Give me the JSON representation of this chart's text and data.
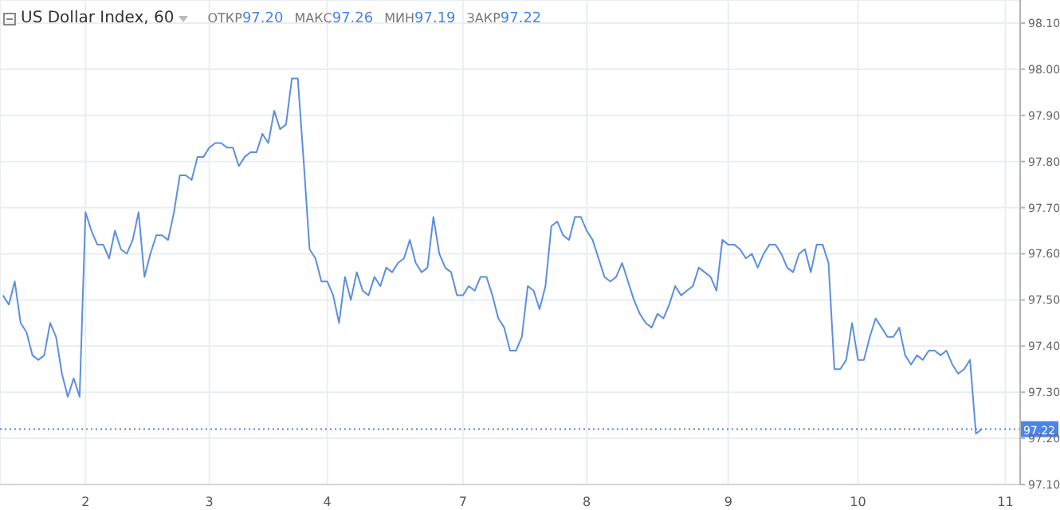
{
  "chart_data": {
    "type": "line",
    "title": "US Dollar Index, 60",
    "annotations": [
      "ОТКР",
      "97.20",
      "МАКС",
      "97.26",
      "МИН",
      "97.19",
      "ЗАКР",
      "97.22"
    ],
    "categories": [
      null,
      null,
      null,
      null,
      null,
      null,
      null,
      null,
      null,
      null,
      null,
      null,
      null,
      null,
      "2",
      null,
      null,
      null,
      null,
      null,
      null,
      null,
      null,
      null,
      null,
      null,
      null,
      null,
      null,
      null,
      null,
      null,
      null,
      null,
      null,
      "3",
      null,
      null,
      null,
      null,
      null,
      null,
      null,
      null,
      null,
      null,
      null,
      null,
      null,
      null,
      null,
      null,
      null,
      null,
      null,
      "4",
      null,
      null,
      null,
      null,
      null,
      null,
      null,
      null,
      null,
      null,
      null,
      null,
      null,
      null,
      null,
      null,
      null,
      null,
      null,
      null,
      null,
      null,
      "7",
      null,
      null,
      null,
      null,
      null,
      null,
      null,
      null,
      null,
      null,
      null,
      null,
      null,
      null,
      null,
      null,
      null,
      null,
      null,
      null,
      "8",
      null,
      null,
      null,
      null,
      null,
      null,
      null,
      null,
      null,
      null,
      null,
      null,
      null,
      null,
      null,
      null,
      null,
      null,
      null,
      null,
      null,
      null,
      null,
      "9",
      null,
      null,
      null,
      null,
      null,
      null,
      null,
      null,
      null,
      null,
      null,
      null,
      null,
      null,
      null,
      null,
      null,
      null,
      null,
      null,
      null,
      "10",
      null,
      null,
      null,
      null,
      null,
      null,
      null,
      null,
      null,
      null,
      null,
      null,
      null,
      null,
      null,
      null,
      null,
      null,
      null,
      null,
      null,
      null,
      null,
      null,
      "11",
      null,
      null
    ],
    "series": [
      {
        "color": "#5b8fe0",
        "values": [
          97.51,
          97.49,
          97.54,
          97.45,
          97.43,
          97.38,
          97.37,
          97.38,
          97.45,
          97.42,
          97.34,
          97.29,
          97.33,
          97.29,
          97.69,
          97.65,
          97.62,
          97.62,
          97.59,
          97.65,
          97.61,
          97.6,
          97.63,
          97.69,
          97.55,
          97.6,
          97.64,
          97.64,
          97.63,
          97.69,
          97.77,
          97.77,
          97.76,
          97.81,
          97.81,
          97.83,
          97.84,
          97.84,
          97.83,
          97.83,
          97.79,
          97.81,
          97.82,
          97.82,
          97.86,
          97.84,
          97.91,
          97.87,
          97.88,
          97.98,
          97.98,
          97.8,
          97.61,
          97.59,
          97.54,
          97.54,
          97.51,
          97.45,
          97.55,
          97.5,
          97.56,
          97.52,
          97.51,
          97.55,
          97.53,
          97.57,
          97.56,
          97.58,
          97.59,
          97.63,
          97.58,
          97.56,
          97.57,
          97.68,
          97.6,
          97.57,
          97.56,
          97.51,
          97.51,
          97.53,
          97.52,
          97.55,
          97.55,
          97.51,
          97.46,
          97.44,
          97.39,
          97.39,
          97.42,
          97.53,
          97.52,
          97.48,
          97.53,
          97.66,
          97.67,
          97.64,
          97.63,
          97.68,
          97.68,
          97.65,
          97.63,
          97.59,
          97.55,
          97.54,
          97.55,
          97.58,
          97.54,
          97.5,
          97.47,
          97.45,
          97.44,
          97.47,
          97.46,
          97.49,
          97.53,
          97.51,
          97.52,
          97.53,
          97.57,
          97.56,
          97.55,
          97.52,
          97.63,
          97.62,
          97.62,
          97.61,
          97.59,
          97.6,
          97.57,
          97.6,
          97.62,
          97.62,
          97.6,
          97.57,
          97.56,
          97.6,
          97.61,
          97.56,
          97.62,
          97.62,
          97.58,
          97.35,
          97.35,
          97.37,
          97.45,
          97.37,
          97.37,
          97.42,
          97.46,
          97.44,
          97.42,
          97.42,
          97.44,
          97.38,
          97.36,
          97.38,
          97.37,
          97.39,
          97.39,
          97.38,
          97.39,
          97.36,
          97.34,
          97.35,
          97.37,
          97.21,
          97.22,
          null,
          null,
          null,
          null,
          null,
          null
        ]
      }
    ],
    "ylim": [
      97.1,
      98.15
    ],
    "yticks": [
      {
        "value": 97.1,
        "label": "97.10"
      },
      {
        "value": 97.2,
        "label": "97.20"
      },
      {
        "value": 97.3,
        "label": "97.30"
      },
      {
        "value": 97.4,
        "label": "97.40"
      },
      {
        "value": 97.5,
        "label": "97.50"
      },
      {
        "value": 97.6,
        "label": "97.60"
      },
      {
        "value": 97.7,
        "label": "97.70"
      },
      {
        "value": 97.8,
        "label": "97.80"
      },
      {
        "value": 97.9,
        "label": "97.90"
      },
      {
        "value": 98.0,
        "label": "98.00"
      },
      {
        "value": 98.1,
        "label": "98.10"
      }
    ],
    "ref_lines": [
      {
        "axis": "y",
        "value": 97.22,
        "label": "97.22",
        "color": "#4a86e8",
        "line_style": "dotted"
      }
    ],
    "grid": true,
    "marker": "none",
    "line_style": "solid"
  }
}
